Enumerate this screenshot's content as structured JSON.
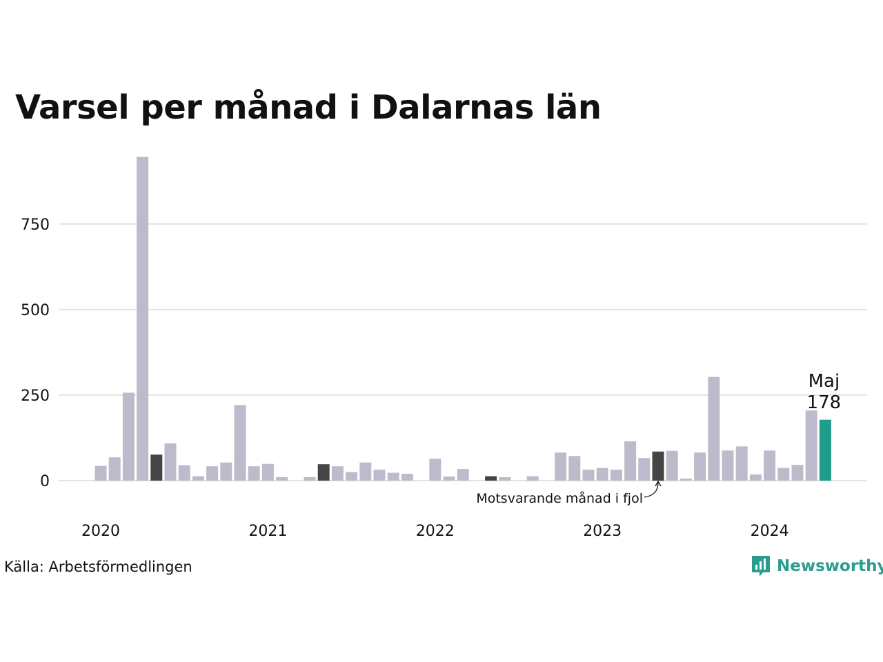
{
  "title": "Varsel per månad i Dalarnas län",
  "source": "Källa: Arbetsförmedlingen",
  "logo": {
    "name": "Newsworthy",
    "icon": "newsworthy-logo-icon"
  },
  "colors": {
    "default": "#bdbbcb",
    "comparison": "#454545",
    "highlight": "#1f9c8c",
    "grid": "#e3e3e3"
  },
  "chart_data": {
    "type": "bar",
    "title": "Varsel per månad i Dalarnas län",
    "xlabel": "",
    "ylabel": "",
    "ylim": [
      0,
      950
    ],
    "yticks": [
      0,
      250,
      500,
      750
    ],
    "xticks": [
      "2020",
      "2021",
      "2022",
      "2023",
      "2024"
    ],
    "grid": true,
    "start": "2020-01",
    "values": [
      43,
      68,
      257,
      946,
      76,
      109,
      45,
      13,
      42,
      53,
      221,
      42,
      49,
      10,
      0,
      10,
      48,
      42,
      25,
      53,
      32,
      23,
      20,
      0,
      64,
      12,
      34,
      0,
      13,
      10,
      0,
      13,
      0,
      82,
      72,
      32,
      37,
      32,
      115,
      66,
      85,
      87,
      6,
      82,
      303,
      88,
      100,
      18,
      88,
      37,
      46,
      205,
      178
    ],
    "comparison_indices": [
      4,
      16,
      28,
      40
    ],
    "highlight": {
      "index": 52,
      "month": "Maj",
      "value": "178"
    },
    "annotation": "Motsvarande månad i fjol"
  }
}
